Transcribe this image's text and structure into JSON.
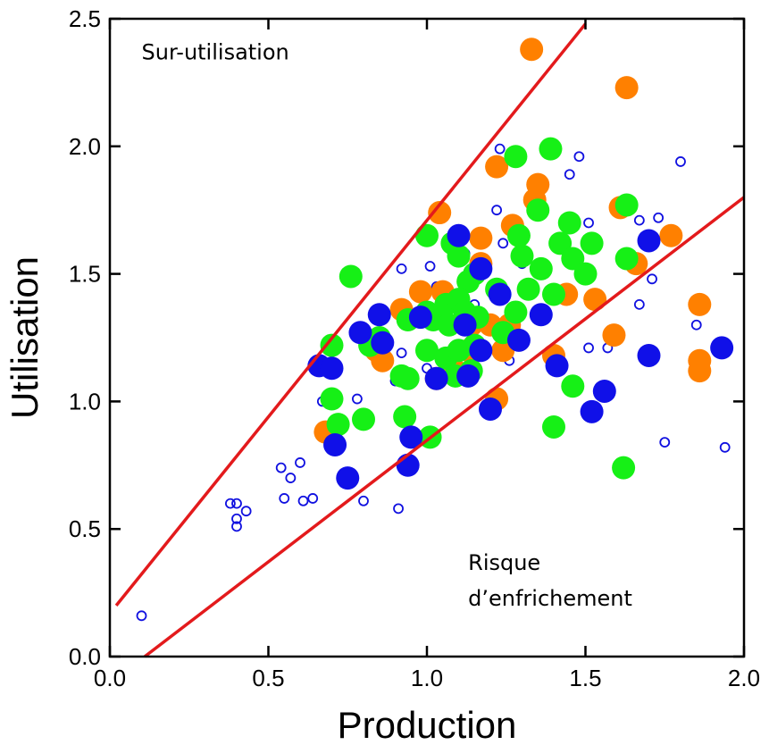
{
  "chart_data": {
    "type": "scatter",
    "title": "",
    "xlabel": "Production",
    "ylabel": "Utilisation",
    "xlim": [
      0,
      2.0
    ],
    "ylim": [
      0,
      2.5
    ],
    "grid": false,
    "legend": "none",
    "xticks": [
      "0.0",
      "0.5",
      "1.0",
      "1.5",
      "2.0"
    ],
    "yticks": [
      "0.0",
      "0.5",
      "1.0",
      "1.5",
      "2.0",
      "2.5"
    ],
    "xtick_values": [
      0,
      0.5,
      1.0,
      1.5,
      2.0
    ],
    "ytick_values": [
      0,
      0.5,
      1.0,
      1.5,
      2.0,
      2.5
    ],
    "annotations": [
      {
        "text": "Sur-utilisation",
        "x": 0.1,
        "y": 2.34
      },
      {
        "text": "Risque",
        "x": 1.13,
        "y": 0.34
      },
      {
        "text": "d’enfrichement",
        "x": 1.13,
        "y": 0.2
      }
    ],
    "lines": [
      {
        "color": "#e31a1c",
        "x": [
          0.02,
          1.5
        ],
        "y": [
          0.2,
          2.48
        ]
      },
      {
        "color": "#e31a1c",
        "x": [
          0.11,
          2.0
        ],
        "y": [
          0.0,
          1.8
        ]
      }
    ],
    "series": [
      {
        "color": "#1010e0",
        "style": "small-open",
        "points": [
          [
            0.1,
            0.16
          ],
          [
            0.38,
            0.6
          ],
          [
            0.4,
            0.6
          ],
          [
            0.4,
            0.54
          ],
          [
            0.4,
            0.51
          ],
          [
            0.43,
            0.57
          ],
          [
            0.54,
            0.74
          ],
          [
            0.55,
            0.62
          ],
          [
            0.57,
            0.7
          ],
          [
            0.6,
            0.76
          ],
          [
            0.61,
            0.61
          ],
          [
            0.64,
            0.62
          ],
          [
            0.67,
            1.0
          ],
          [
            0.78,
            1.01
          ],
          [
            0.8,
            0.61
          ],
          [
            0.9,
            1.08
          ],
          [
            0.91,
            0.58
          ],
          [
            0.92,
            1.19
          ],
          [
            0.92,
            1.52
          ],
          [
            1.0,
            1.13
          ],
          [
            1.01,
            1.53
          ],
          [
            1.03,
            1.45
          ],
          [
            1.12,
            1.58
          ],
          [
            1.15,
            1.38
          ],
          [
            1.22,
            1.75
          ],
          [
            1.23,
            1.99
          ],
          [
            1.24,
            1.62
          ],
          [
            1.26,
            1.16
          ],
          [
            1.3,
            1.54
          ],
          [
            1.45,
            1.89
          ],
          [
            1.48,
            1.96
          ],
          [
            1.51,
            1.7
          ],
          [
            1.51,
            1.21
          ],
          [
            1.57,
            1.21
          ],
          [
            1.62,
            1.55
          ],
          [
            1.67,
            1.38
          ],
          [
            1.67,
            1.71
          ],
          [
            1.71,
            1.48
          ],
          [
            1.73,
            1.72
          ],
          [
            1.75,
            0.84
          ],
          [
            1.8,
            1.94
          ],
          [
            1.85,
            1.3
          ],
          [
            1.94,
            0.82
          ]
        ]
      },
      {
        "color": "#ff8000",
        "style": "large-filled",
        "points": [
          [
            1.33,
            2.38
          ],
          [
            1.63,
            2.23
          ],
          [
            1.22,
            1.92
          ],
          [
            1.04,
            1.74
          ],
          [
            1.34,
            1.79
          ],
          [
            1.35,
            1.85
          ],
          [
            1.27,
            1.69
          ],
          [
            1.17,
            1.64
          ],
          [
            1.61,
            1.76
          ],
          [
            1.77,
            1.65
          ],
          [
            1.66,
            1.54
          ],
          [
            1.17,
            1.54
          ],
          [
            0.92,
            1.36
          ],
          [
            0.98,
            1.43
          ],
          [
            1.05,
            1.43
          ],
          [
            1.44,
            1.42
          ],
          [
            1.53,
            1.4
          ],
          [
            1.14,
            1.3
          ],
          [
            1.2,
            1.3
          ],
          [
            1.26,
            1.3
          ],
          [
            0.84,
            1.2
          ],
          [
            0.86,
            1.16
          ],
          [
            1.13,
            1.2
          ],
          [
            1.24,
            1.2
          ],
          [
            1.4,
            1.18
          ],
          [
            1.03,
            1.09
          ],
          [
            1.09,
            1.12
          ],
          [
            1.22,
            1.01
          ],
          [
            0.68,
            0.88
          ],
          [
            1.59,
            1.26
          ],
          [
            1.86,
            1.38
          ],
          [
            1.86,
            1.16
          ],
          [
            1.86,
            1.12
          ]
        ]
      },
      {
        "color": "#16f016",
        "style": "large-filled",
        "points": [
          [
            1.39,
            1.99
          ],
          [
            1.28,
            1.96
          ],
          [
            1.63,
            1.77
          ],
          [
            1.35,
            1.75
          ],
          [
            1.45,
            1.7
          ],
          [
            1.29,
            1.65
          ],
          [
            1.42,
            1.62
          ],
          [
            1.52,
            1.62
          ],
          [
            1.0,
            1.65
          ],
          [
            1.08,
            1.62
          ],
          [
            1.1,
            1.57
          ],
          [
            1.3,
            1.57
          ],
          [
            1.36,
            1.52
          ],
          [
            1.46,
            1.56
          ],
          [
            0.76,
            1.49
          ],
          [
            1.13,
            1.47
          ],
          [
            1.15,
            1.5
          ],
          [
            1.22,
            1.44
          ],
          [
            1.32,
            1.44
          ],
          [
            1.5,
            1.5
          ],
          [
            1.63,
            1.56
          ],
          [
            1.06,
            1.38
          ],
          [
            1.1,
            1.4
          ],
          [
            1.12,
            1.35
          ],
          [
            1.4,
            1.42
          ],
          [
            1.02,
            1.32
          ],
          [
            1.07,
            1.3
          ],
          [
            1.16,
            1.33
          ],
          [
            1.28,
            1.35
          ],
          [
            0.94,
            1.32
          ],
          [
            1.0,
            1.35
          ],
          [
            0.7,
            1.22
          ],
          [
            0.82,
            1.22
          ],
          [
            0.85,
            1.25
          ],
          [
            1.0,
            1.2
          ],
          [
            1.06,
            1.17
          ],
          [
            1.1,
            1.2
          ],
          [
            1.15,
            1.22
          ],
          [
            1.24,
            1.27
          ],
          [
            0.92,
            1.1
          ],
          [
            0.94,
            1.09
          ],
          [
            1.09,
            1.1
          ],
          [
            1.14,
            1.12
          ],
          [
            0.7,
            1.01
          ],
          [
            0.72,
            0.91
          ],
          [
            0.8,
            0.93
          ],
          [
            0.93,
            0.94
          ],
          [
            1.01,
            0.86
          ],
          [
            1.4,
            0.9
          ],
          [
            1.46,
            1.06
          ],
          [
            1.62,
            0.74
          ]
        ]
      },
      {
        "color": "#1010e8",
        "style": "large-filled",
        "points": [
          [
            1.1,
            1.65
          ],
          [
            1.17,
            1.52
          ],
          [
            1.23,
            1.42
          ],
          [
            1.7,
            1.63
          ],
          [
            1.36,
            1.34
          ],
          [
            0.98,
            1.33
          ],
          [
            1.12,
            1.3
          ],
          [
            0.85,
            1.34
          ],
          [
            0.79,
            1.27
          ],
          [
            0.86,
            1.23
          ],
          [
            1.17,
            1.2
          ],
          [
            1.29,
            1.24
          ],
          [
            0.66,
            1.14
          ],
          [
            0.7,
            1.13
          ],
          [
            1.03,
            1.09
          ],
          [
            1.13,
            1.1
          ],
          [
            1.41,
            1.14
          ],
          [
            1.7,
            1.18
          ],
          [
            1.93,
            1.21
          ],
          [
            1.56,
            1.04
          ],
          [
            1.2,
            0.97
          ],
          [
            1.52,
            0.96
          ],
          [
            0.95,
            0.86
          ],
          [
            0.71,
            0.83
          ],
          [
            0.94,
            0.75
          ],
          [
            0.75,
            0.7
          ]
        ]
      }
    ]
  }
}
